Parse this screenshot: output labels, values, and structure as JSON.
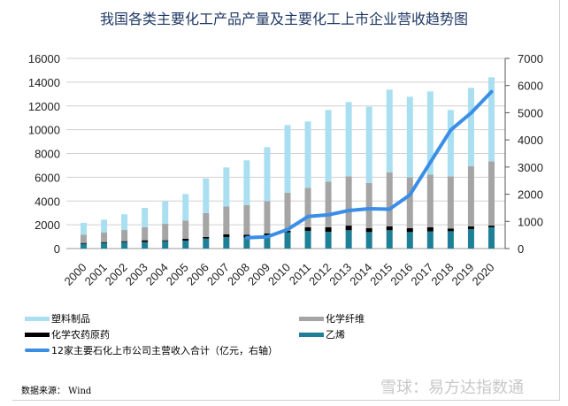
{
  "chart_data": {
    "type": "bar",
    "title": "我国各类主要化工产品产量及主要化工上市企业营收趋势图",
    "categories": [
      "2000",
      "2001",
      "2002",
      "2003",
      "2004",
      "2005",
      "2006",
      "2007",
      "2008",
      "2009",
      "2010",
      "2011",
      "2012",
      "2013",
      "2014",
      "2015",
      "2016",
      "2017",
      "2018",
      "2019",
      "2020"
    ],
    "stacked": true,
    "series": [
      {
        "name": "乙烯",
        "color": "#1f7f96",
        "values": [
          400,
          470,
          545,
          545,
          620,
          670,
          840,
          970,
          920,
          990,
          1360,
          1490,
          1410,
          1540,
          1390,
          1540,
          1390,
          1440,
          1460,
          1640,
          1790
        ]
      },
      {
        "name": "化学农药原药",
        "color": "#000000",
        "values": [
          70,
          75,
          75,
          150,
          75,
          150,
          130,
          220,
          250,
          275,
          130,
          300,
          380,
          390,
          320,
          320,
          320,
          350,
          230,
          220,
          140
        ]
      },
      {
        "name": "化学纤维",
        "color": "#a5a5a5",
        "values": [
          700,
          815,
          940,
          1095,
          1385,
          1540,
          2010,
          2360,
          2480,
          2725,
          3200,
          3320,
          3840,
          4150,
          3800,
          4540,
          4290,
          4430,
          4390,
          5060,
          5410
        ]
      },
      {
        "name": "塑料制品",
        "color": "#a9dff0",
        "values": [
          990,
          1070,
          1320,
          1630,
          1910,
          2230,
          2920,
          3270,
          3770,
          4540,
          5700,
          5580,
          6030,
          6250,
          6420,
          6970,
          6770,
          7000,
          5580,
          6600,
          7070
        ]
      }
    ],
    "line_series": {
      "name": "12家主要石化上市公司主营收入合计（亿元，右轴）",
      "color": "#3a8ee6",
      "axis": "right",
      "x": [
        "2008",
        "2009",
        "2010",
        "2011",
        "2012",
        "2013",
        "2014",
        "2015",
        "2016",
        "2017",
        "2018",
        "2019",
        "2020"
      ],
      "values": [
        400,
        430,
        700,
        1180,
        1240,
        1400,
        1465,
        1450,
        1975,
        3170,
        4360,
        4990,
        5770
      ]
    },
    "ylim": [
      0,
      16000
    ],
    "yticks": [
      "0",
      "2000",
      "4000",
      "6000",
      "8000",
      "10000",
      "12000",
      "14000",
      "16000"
    ],
    "y2lim": [
      0,
      7000
    ],
    "y2ticks": [
      "0",
      "1000",
      "2000",
      "3000",
      "4000",
      "5000",
      "6000",
      "7000"
    ],
    "grid": true,
    "legend_position": "bottom",
    "legend": [
      "塑料制品",
      "化学纤维",
      "化学农药原药",
      "乙烯",
      "12家主要石化上市公司主营收入合计（亿元，右轴）"
    ]
  },
  "source": "数据来源： Wind",
  "watermark": "雪球：易方达指数通"
}
